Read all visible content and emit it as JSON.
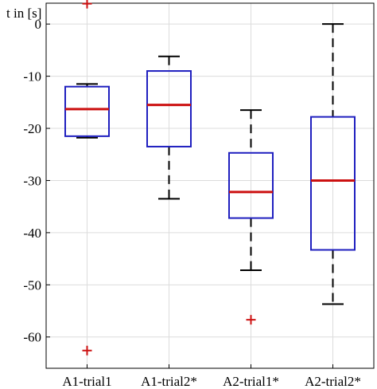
{
  "chart_data": {
    "type": "box",
    "ylabel": "t in [s]",
    "ylim": [
      -66,
      4
    ],
    "yticks": [
      0,
      -10,
      -20,
      -30,
      -40,
      -50,
      -60
    ],
    "grid": true,
    "categories": [
      "A1-trial1",
      "A1-trial2*",
      "A2-trial1*",
      "A2-trial2*"
    ],
    "boxes": [
      {
        "category": "A1-trial1",
        "whisker_high": -11.5,
        "q3": -12,
        "median": -16.3,
        "q1": -21.5,
        "whisker_low": -21.8,
        "outliers": [
          3.9,
          -62.6
        ]
      },
      {
        "category": "A1-trial2*",
        "whisker_high": -6.2,
        "q3": -9,
        "median": -15.5,
        "q1": -23.5,
        "whisker_low": -33.5,
        "outliers": []
      },
      {
        "category": "A2-trial1*",
        "whisker_high": -16.5,
        "q3": -24.7,
        "median": -32.2,
        "q1": -37.2,
        "whisker_low": -47.2,
        "outliers": [
          -56.7
        ]
      },
      {
        "category": "A2-trial2*",
        "whisker_high": 0,
        "q3": -17.8,
        "median": -30,
        "q1": -43.3,
        "whisker_low": -53.7,
        "outliers": []
      }
    ],
    "colors": {
      "box": "#1f1fbf",
      "median": "#cc1111",
      "outlier": "#cc1111",
      "whisker": "#000000",
      "grid": "#dcdcdc"
    }
  }
}
